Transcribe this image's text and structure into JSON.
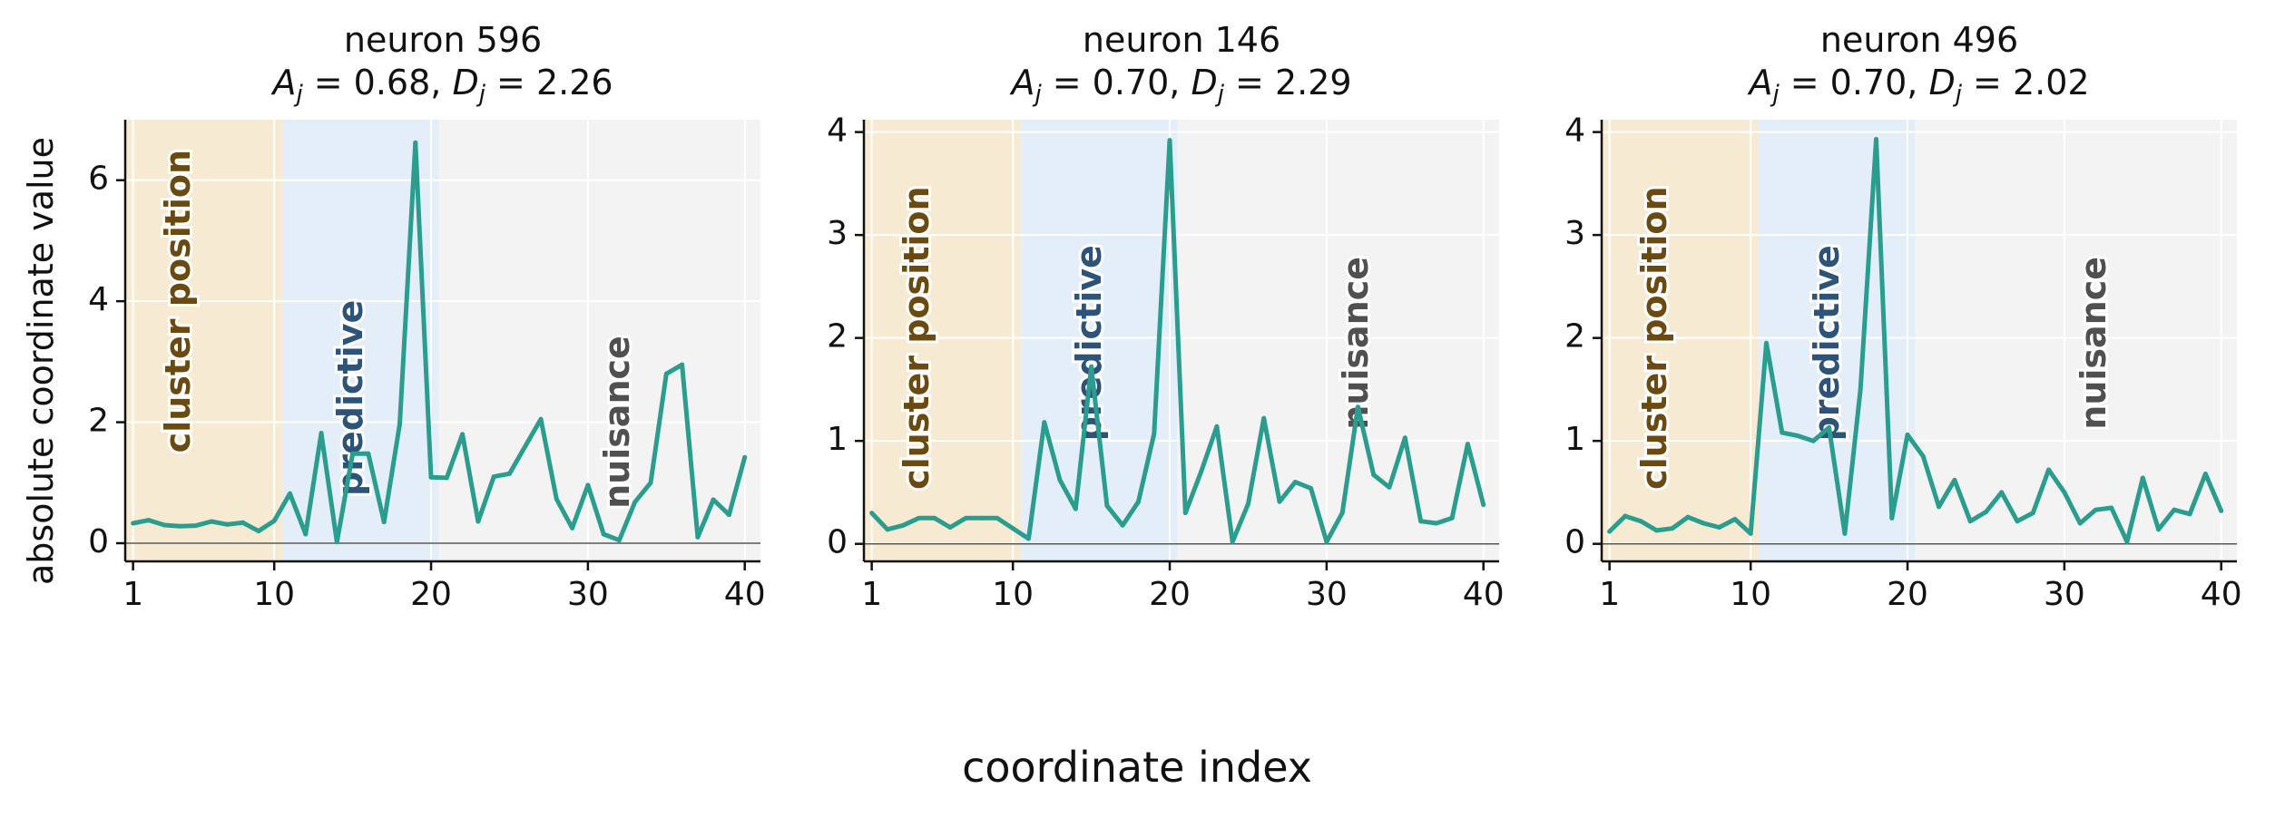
{
  "figure": {
    "xlabel": "coordinate index",
    "ylabel": "absolute coordinate value",
    "region_labels": [
      "cluster position",
      "predictive",
      "nuisance"
    ]
  },
  "colors": {
    "line": "#2a9d8f",
    "cluster_band": "#f7ead2",
    "predictive_band": "#e3eef8",
    "nuisance_band": "#f3f3f3",
    "cluster_text": "#6b4a12",
    "predictive_text": "#2d5478",
    "nuisance_text": "#505050"
  },
  "chart_data": [
    {
      "type": "line",
      "title": "neuron 596",
      "subtitle": {
        "a_symbol": "A",
        "a_sub": "j",
        "a_value": "0.68",
        "d_symbol": "D",
        "d_sub": "j",
        "d_value": "2.26"
      },
      "x": [
        1,
        2,
        3,
        4,
        5,
        6,
        7,
        8,
        9,
        10,
        11,
        12,
        13,
        14,
        15,
        16,
        17,
        18,
        19,
        20,
        21,
        22,
        23,
        24,
        25,
        26,
        27,
        28,
        29,
        30,
        31,
        32,
        33,
        34,
        35,
        36,
        37,
        38,
        39,
        40
      ],
      "values": [
        0.33,
        0.38,
        0.3,
        0.28,
        0.29,
        0.36,
        0.31,
        0.34,
        0.2,
        0.37,
        0.82,
        0.15,
        1.82,
        0.02,
        1.48,
        1.48,
        0.35,
        1.97,
        6.62,
        1.09,
        1.08,
        1.8,
        0.36,
        1.1,
        1.15,
        1.6,
        2.05,
        0.73,
        0.25,
        0.96,
        0.15,
        0.05,
        0.68,
        1.0,
        2.8,
        2.95,
        0.1,
        0.72,
        0.47,
        1.42
      ],
      "xticks": [
        "1",
        "10",
        "20",
        "30",
        "40"
      ],
      "yticks": [
        "0",
        "2",
        "4",
        "6"
      ],
      "xlim": [
        0.5,
        41
      ],
      "ylim": [
        -0.3,
        7.0
      ],
      "regions": [
        {
          "name": "cluster position",
          "from": 0.5,
          "to": 10.5
        },
        {
          "name": "predictive",
          "from": 10.5,
          "to": 20.5
        },
        {
          "name": "nuisance",
          "from": 20.5,
          "to": 41
        }
      ],
      "grid": true
    },
    {
      "type": "line",
      "title": "neuron 146",
      "subtitle": {
        "a_symbol": "A",
        "a_sub": "j",
        "a_value": "0.70",
        "d_symbol": "D",
        "d_sub": "j",
        "d_value": "2.29"
      },
      "x": [
        1,
        2,
        3,
        4,
        5,
        6,
        7,
        8,
        9,
        10,
        11,
        12,
        13,
        14,
        15,
        16,
        17,
        18,
        19,
        20,
        21,
        22,
        23,
        24,
        25,
        26,
        27,
        28,
        29,
        30,
        31,
        32,
        33,
        34,
        35,
        36,
        37,
        38,
        39,
        40
      ],
      "values": [
        0.3,
        0.14,
        0.18,
        0.25,
        0.25,
        0.16,
        0.25,
        0.25,
        0.25,
        0.15,
        0.05,
        1.18,
        0.62,
        0.34,
        1.72,
        0.37,
        0.18,
        0.41,
        1.07,
        3.92,
        0.3,
        0.7,
        1.14,
        0.02,
        0.39,
        1.22,
        0.41,
        0.6,
        0.54,
        0.02,
        0.3,
        1.33,
        0.67,
        0.55,
        1.03,
        0.22,
        0.2,
        0.25,
        0.97,
        0.38
      ],
      "xticks": [
        "1",
        "10",
        "20",
        "30",
        "40"
      ],
      "yticks": [
        "0",
        "1",
        "2",
        "3",
        "4"
      ],
      "xlim": [
        0.5,
        41
      ],
      "ylim": [
        -0.17,
        4.12
      ],
      "regions": [
        {
          "name": "cluster position",
          "from": 0.5,
          "to": 10.5
        },
        {
          "name": "predictive",
          "from": 10.5,
          "to": 20.5
        },
        {
          "name": "nuisance",
          "from": 20.5,
          "to": 41
        }
      ],
      "grid": true
    },
    {
      "type": "line",
      "title": "neuron 496",
      "subtitle": {
        "a_symbol": "A",
        "a_sub": "j",
        "a_value": "0.70",
        "d_symbol": "D",
        "d_sub": "j",
        "d_value": "2.02"
      },
      "x": [
        1,
        2,
        3,
        4,
        5,
        6,
        7,
        8,
        9,
        10,
        11,
        12,
        13,
        14,
        15,
        16,
        17,
        18,
        19,
        20,
        21,
        22,
        23,
        24,
        25,
        26,
        27,
        28,
        29,
        30,
        31,
        32,
        33,
        34,
        35,
        36,
        37,
        38,
        39,
        40
      ],
      "values": [
        0.12,
        0.27,
        0.22,
        0.13,
        0.15,
        0.26,
        0.2,
        0.16,
        0.24,
        0.1,
        1.95,
        1.08,
        1.05,
        1.0,
        1.13,
        0.1,
        1.5,
        3.93,
        0.25,
        1.06,
        0.85,
        0.36,
        0.62,
        0.22,
        0.31,
        0.5,
        0.22,
        0.3,
        0.72,
        0.5,
        0.2,
        0.33,
        0.35,
        0.02,
        0.64,
        0.14,
        0.33,
        0.29,
        0.68,
        0.32
      ],
      "xticks": [
        "1",
        "10",
        "20",
        "30",
        "40"
      ],
      "yticks": [
        "0",
        "1",
        "2",
        "3",
        "4"
      ],
      "xlim": [
        0.5,
        41
      ],
      "ylim": [
        -0.17,
        4.12
      ],
      "regions": [
        {
          "name": "cluster position",
          "from": 0.5,
          "to": 10.5
        },
        {
          "name": "predictive",
          "from": 10.5,
          "to": 20.5
        },
        {
          "name": "nuisance",
          "from": 20.5,
          "to": 41
        }
      ],
      "grid": true
    }
  ]
}
